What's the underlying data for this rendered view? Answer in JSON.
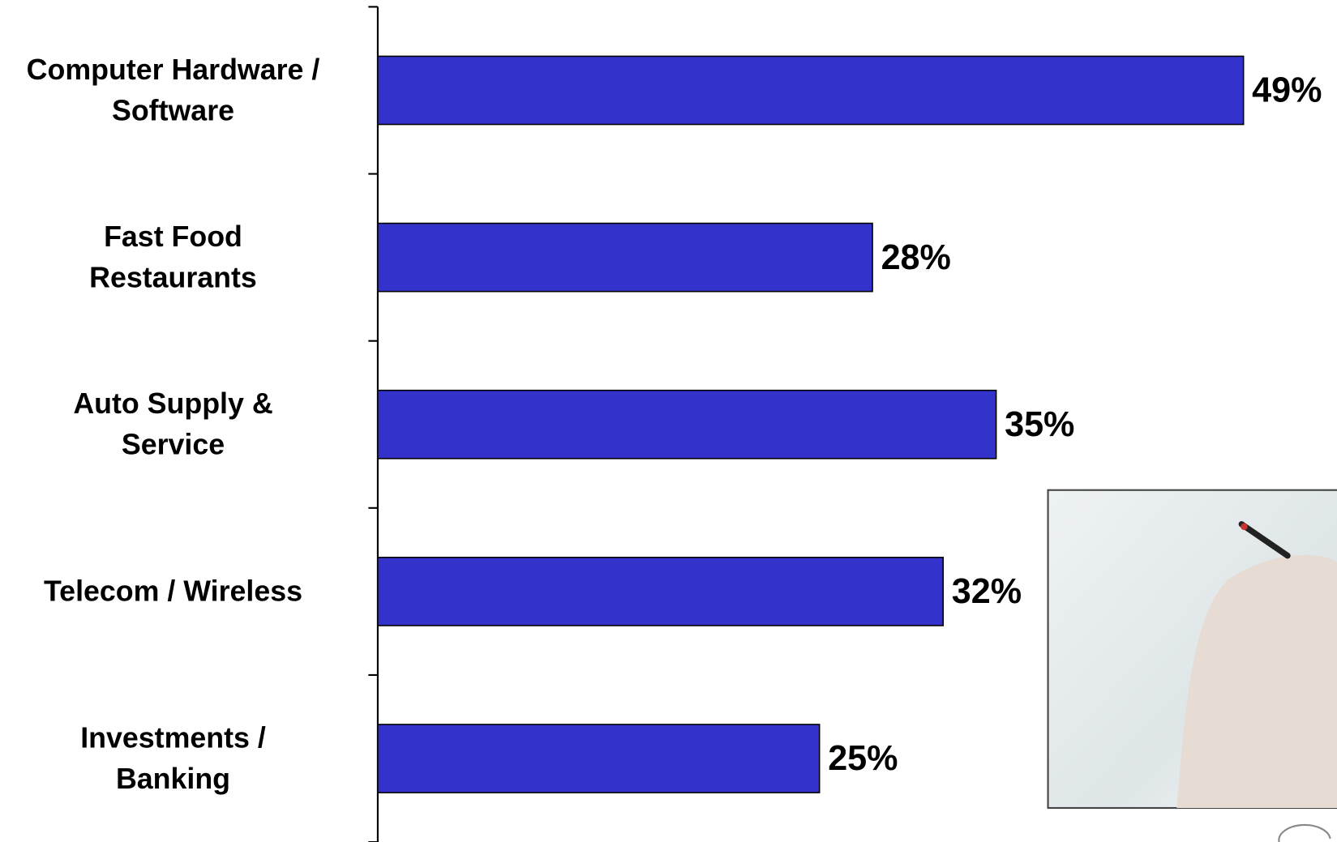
{
  "chart_data": {
    "type": "bar",
    "orientation": "horizontal",
    "categories": [
      "Computer Hardware /\nSoftware",
      "Fast Food\nRestaurants",
      "Auto Supply &\nService",
      "Telecom / Wireless",
      "Investments /\nBanking"
    ],
    "values": [
      49,
      28,
      35,
      32,
      25
    ],
    "value_labels": [
      "49%",
      "28%",
      "35%",
      "32%",
      "25%"
    ],
    "color": "#3333cc"
  }
}
